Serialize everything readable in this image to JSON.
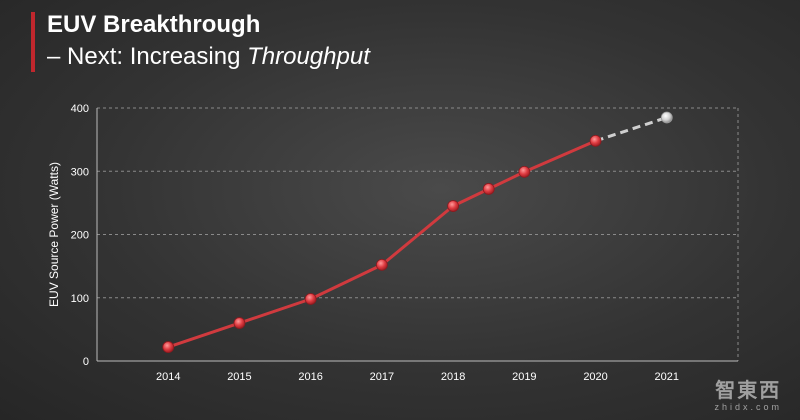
{
  "slide": {
    "title": "EUV Breakthrough",
    "subtitle_prefix": "– Next: Increasing ",
    "subtitle_emphasis": "Throughput",
    "accent_color": "#c0272d"
  },
  "watermark": {
    "main": "智東西",
    "sub": "zhidx.com"
  },
  "chart_data": {
    "type": "line",
    "title": "",
    "xlabel": "",
    "ylabel": "EUV Source Power (Watts)",
    "ylim": [
      0,
      400
    ],
    "yticks": [
      0,
      100,
      200,
      300,
      400
    ],
    "xlim": [
      2013,
      2022
    ],
    "xticks": [
      2014,
      2015,
      2016,
      2017,
      2018,
      2019,
      2020,
      2021
    ],
    "grid": true,
    "series": [
      {
        "style": "solid",
        "color": "#d03a3e",
        "points": [
          {
            "x": 2014,
            "y": 22
          },
          {
            "x": 2015,
            "y": 60
          },
          {
            "x": 2016,
            "y": 98
          },
          {
            "x": 2017,
            "y": 152
          },
          {
            "x": 2018,
            "y": 245
          },
          {
            "x": 2018.5,
            "y": 272
          },
          {
            "x": 2019,
            "y": 299
          },
          {
            "x": 2020,
            "y": 348
          }
        ]
      },
      {
        "style": "dashed",
        "color": "#cfcfcf",
        "points": [
          {
            "x": 2020,
            "y": 348
          },
          {
            "x": 2021,
            "y": 385
          }
        ]
      }
    ]
  }
}
